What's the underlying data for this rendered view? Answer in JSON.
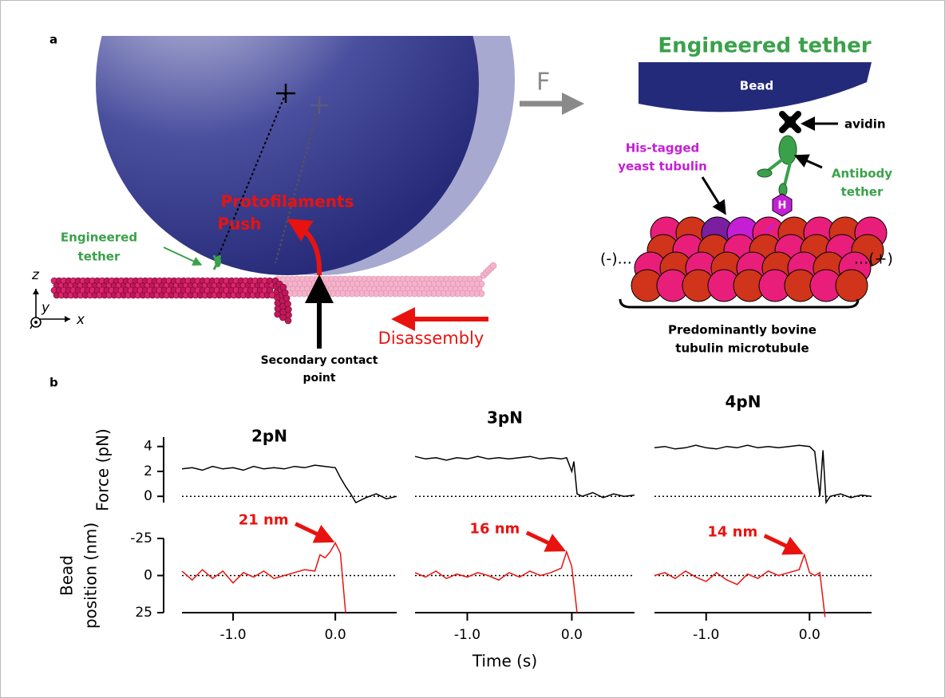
{
  "panel_a": {
    "label": "a",
    "force_label": "F",
    "push_label": [
      "Protofilaments",
      "Push"
    ],
    "left_tether_label": [
      "Engineered",
      "tether"
    ],
    "disassembly_label": "Disassembly",
    "contact_label": [
      "Secondary contact",
      "point"
    ],
    "axis_labels": {
      "z": "z",
      "y": "y",
      "x": "x"
    },
    "inset_title": "Engineered tether",
    "bead_label": "Bead",
    "avidin_label": "avidin",
    "his_tag_label": [
      "His-tagged",
      "yeast tubulin"
    ],
    "antibody_label": [
      "Antibody",
      "tether"
    ],
    "his_symbol": "H",
    "minus_end": "(-)...",
    "plus_end": "...(+)",
    "microtubule_label": [
      "Predominantly bovine",
      "tubulin microtubule"
    ]
  },
  "panel_b_label": "b",
  "chart_data": [
    {
      "type": "line",
      "title": "2pN",
      "ylabel": "Force (pN)",
      "ylim": [
        -0.5,
        4.75
      ],
      "yticks": [
        0,
        2,
        4
      ],
      "xlim": [
        -1.5,
        0.6
      ],
      "reference_line": 0,
      "series": [
        {
          "color": "#000000",
          "x": [
            -1.5,
            -1.4,
            -1.3,
            -1.2,
            -1.1,
            -1.0,
            -0.9,
            -0.8,
            -0.7,
            -0.6,
            -0.5,
            -0.4,
            -0.3,
            -0.2,
            -0.1,
            0.0,
            0.05,
            0.1,
            0.15,
            0.2,
            0.3,
            0.4,
            0.5,
            0.6
          ],
          "values": [
            2.2,
            2.3,
            2.1,
            2.4,
            2.2,
            2.3,
            2.1,
            2.4,
            2.2,
            2.3,
            2.2,
            2.4,
            2.3,
            2.5,
            2.4,
            2.3,
            1.5,
            0.8,
            0.2,
            -0.5,
            -0.1,
            0.2,
            -0.2,
            0.0
          ]
        }
      ]
    },
    {
      "type": "line",
      "title": "3pN",
      "ylim": [
        -0.5,
        4.75
      ],
      "xlim": [
        -1.5,
        0.6
      ],
      "reference_line": 0,
      "series": [
        {
          "color": "#000000",
          "x": [
            -1.5,
            -1.4,
            -1.3,
            -1.2,
            -1.1,
            -1.0,
            -0.9,
            -0.8,
            -0.7,
            -0.6,
            -0.5,
            -0.4,
            -0.3,
            -0.2,
            -0.1,
            -0.05,
            0.0,
            0.02,
            0.05,
            0.1,
            0.2,
            0.3,
            0.4,
            0.5,
            0.6
          ],
          "values": [
            3.2,
            3.0,
            3.1,
            2.9,
            3.1,
            3.0,
            3.2,
            3.0,
            3.1,
            3.0,
            3.1,
            3.2,
            3.0,
            3.1,
            3.0,
            3.1,
            2.0,
            2.8,
            0.2,
            0.0,
            0.3,
            -0.1,
            0.2,
            0.0,
            0.1
          ]
        }
      ]
    },
    {
      "type": "line",
      "title": "4pN",
      "ylim": [
        -0.5,
        4.75
      ],
      "xlim": [
        -1.5,
        0.6
      ],
      "reference_line": 0,
      "series": [
        {
          "color": "#000000",
          "x": [
            -1.5,
            -1.4,
            -1.3,
            -1.2,
            -1.1,
            -1.0,
            -0.9,
            -0.8,
            -0.7,
            -0.6,
            -0.5,
            -0.4,
            -0.3,
            -0.2,
            -0.1,
            0.0,
            0.05,
            0.1,
            0.13,
            0.16,
            0.2,
            0.3,
            0.4,
            0.5,
            0.6
          ],
          "values": [
            3.9,
            4.0,
            3.8,
            3.9,
            4.1,
            3.9,
            3.8,
            4.0,
            3.9,
            4.1,
            3.9,
            4.0,
            3.9,
            4.0,
            4.1,
            4.0,
            3.6,
            0.0,
            3.7,
            -0.5,
            0.0,
            0.2,
            -0.1,
            0.1,
            0.0
          ]
        }
      ]
    },
    {
      "type": "line",
      "ylabel": [
        "Bead",
        "position (nm)"
      ],
      "ylim": [
        25,
        -25
      ],
      "yticks": [
        -25,
        0,
        25
      ],
      "xlim": [
        -1.5,
        0.6
      ],
      "xticks": [
        {
          "value": -1.0,
          "label": "-1.0"
        },
        {
          "value": 0.0,
          "label": "0.0"
        }
      ],
      "reference_line": 0,
      "annotation": "21 nm",
      "series": [
        {
          "color": "#e8130f",
          "x": [
            -1.5,
            -1.4,
            -1.3,
            -1.2,
            -1.1,
            -1.0,
            -0.9,
            -0.8,
            -0.7,
            -0.6,
            -0.5,
            -0.4,
            -0.3,
            -0.2,
            -0.15,
            -0.1,
            -0.05,
            0.0,
            0.05,
            0.1
          ],
          "values": [
            -3,
            3,
            -4,
            2,
            -3,
            5,
            -2,
            1,
            -3,
            2,
            0,
            -2,
            -4,
            -3,
            -14,
            -12,
            -16,
            -22,
            -15,
            25
          ]
        }
      ]
    },
    {
      "type": "line",
      "xlabel": "Time (s)",
      "ylim": [
        25,
        -25
      ],
      "xlim": [
        -1.5,
        0.6
      ],
      "xticks": [
        {
          "value": -1.0,
          "label": "-1.0"
        },
        {
          "value": 0.0,
          "label": "0.0"
        }
      ],
      "reference_line": 0,
      "annotation": "16 nm",
      "series": [
        {
          "color": "#e8130f",
          "x": [
            -1.5,
            -1.4,
            -1.3,
            -1.2,
            -1.1,
            -1.0,
            -0.9,
            -0.8,
            -0.7,
            -0.6,
            -0.5,
            -0.4,
            -0.3,
            -0.2,
            -0.1,
            -0.05,
            0.0,
            0.05
          ],
          "values": [
            -2,
            1,
            -3,
            2,
            -1,
            1,
            -2,
            0,
            3,
            -2,
            1,
            -3,
            0,
            -2,
            -5,
            -16,
            -6,
            25
          ]
        }
      ]
    },
    {
      "type": "line",
      "ylim": [
        25,
        -25
      ],
      "xlim": [
        -1.5,
        0.6
      ],
      "xticks": [
        {
          "value": -1.0,
          "label": "-1.0"
        },
        {
          "value": 0.0,
          "label": "0.0"
        }
      ],
      "reference_line": 0,
      "annotation": "14 nm",
      "series": [
        {
          "color": "#e8130f",
          "x": [
            -1.5,
            -1.4,
            -1.3,
            -1.2,
            -1.1,
            -1.0,
            -0.9,
            -0.8,
            -0.7,
            -0.6,
            -0.5,
            -0.4,
            -0.3,
            -0.2,
            -0.1,
            -0.05,
            0.0,
            0.05,
            0.1,
            0.15
          ],
          "values": [
            0,
            -2,
            2,
            -3,
            1,
            4,
            -2,
            3,
            6,
            -1,
            2,
            -3,
            0,
            -2,
            -4,
            -14,
            -2,
            0,
            -2,
            28
          ]
        }
      ]
    }
  ]
}
